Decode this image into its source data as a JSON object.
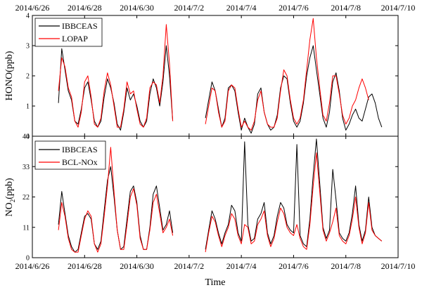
{
  "chart_data": [
    {
      "type": "line",
      "panel": "top",
      "ylabel": "HONO(ppb)",
      "ylim": [
        0,
        4
      ],
      "yticks": [
        "0",
        "1",
        "2",
        "3",
        "4"
      ],
      "xlim": [
        "2014-06-26",
        "2014-07-10"
      ],
      "xticks": [
        "2014/6/26",
        "2014/6/28",
        "2014/6/30",
        "2014/7/2",
        "2014/7/4",
        "2014/7/6",
        "2014/7/8",
        "2014/7/10"
      ],
      "x_axis_labels_on": "top",
      "legend": {
        "position": "top-left",
        "entries": [
          "IBBCEAS",
          "LOPAP"
        ]
      },
      "series": [
        {
          "name": "IBBCEAS",
          "color": "#000000",
          "x": [
            "2014-06-27 00:00",
            "2014-06-27 03:00",
            "2014-06-27 06:00",
            "2014-06-27 09:00",
            "2014-06-27 12:00",
            "2014-06-27 15:00",
            "2014-06-27 18:00",
            "2014-06-27 21:00",
            "2014-06-28 00:00",
            "2014-06-28 03:00",
            "2014-06-28 06:00",
            "2014-06-28 09:00",
            "2014-06-28 12:00",
            "2014-06-28 15:00",
            "2014-06-28 18:00",
            "2014-06-28 21:00",
            "2014-06-29 00:00",
            "2014-06-29 03:00",
            "2014-06-29 06:00",
            "2014-06-29 09:00",
            "2014-06-29 12:00",
            "2014-06-29 15:00",
            "2014-06-29 18:00",
            "2014-06-29 21:00",
            "2014-06-30 00:00",
            "2014-06-30 03:00",
            "2014-06-30 06:00",
            "2014-06-30 09:00",
            "2014-06-30 12:00",
            "2014-06-30 15:00",
            "2014-06-30 18:00",
            "2014-06-30 21:00",
            "2014-07-01 00:00",
            "2014-07-01 03:00",
            "2014-07-01 06:00",
            "2014-07-01 09:00",
            null,
            "2014-07-02 15:00",
            "2014-07-02 18:00",
            "2014-07-02 21:00",
            "2014-07-03 00:00",
            "2014-07-03 03:00",
            "2014-07-03 06:00",
            "2014-07-03 09:00",
            "2014-07-03 12:00",
            "2014-07-03 15:00",
            "2014-07-03 18:00",
            "2014-07-03 21:00",
            "2014-07-04 00:00",
            "2014-07-04 03:00",
            "2014-07-04 06:00",
            "2014-07-04 09:00",
            "2014-07-04 12:00",
            "2014-07-04 15:00",
            "2014-07-04 18:00",
            "2014-07-04 21:00",
            "2014-07-05 00:00",
            "2014-07-05 03:00",
            "2014-07-05 06:00",
            "2014-07-05 09:00",
            "2014-07-05 12:00",
            "2014-07-05 15:00",
            "2014-07-05 18:00",
            "2014-07-05 21:00",
            "2014-07-06 00:00",
            "2014-07-06 03:00",
            "2014-07-06 06:00",
            "2014-07-06 09:00",
            "2014-07-06 12:00",
            "2014-07-06 15:00",
            "2014-07-06 18:00",
            "2014-07-06 21:00",
            "2014-07-07 00:00",
            "2014-07-07 03:00",
            "2014-07-07 06:00",
            "2014-07-07 09:00",
            "2014-07-07 12:00",
            "2014-07-07 15:00",
            "2014-07-07 18:00",
            "2014-07-07 21:00",
            "2014-07-08 00:00",
            "2014-07-08 03:00",
            "2014-07-08 06:00",
            "2014-07-08 09:00",
            "2014-07-08 12:00",
            "2014-07-08 15:00",
            "2014-07-08 18:00",
            "2014-07-08 21:00",
            "2014-07-09 00:00",
            "2014-07-09 03:00",
            "2014-07-09 06:00",
            "2014-07-09 09:00"
          ],
          "y": [
            1.1,
            2.9,
            2.2,
            1.5,
            1.2,
            0.5,
            0.4,
            0.9,
            1.6,
            1.8,
            1.2,
            0.5,
            0.3,
            0.5,
            1.3,
            1.9,
            1.6,
            1.1,
            0.4,
            0.2,
            0.8,
            1.6,
            1.2,
            1.4,
            1.0,
            0.5,
            0.3,
            0.5,
            1.4,
            1.9,
            1.6,
            1.0,
            1.8,
            3.0,
            2.0,
            0.5,
            null,
            0.6,
            1.2,
            1.8,
            1.5,
            0.9,
            0.3,
            0.6,
            1.6,
            1.7,
            1.5,
            0.8,
            0.2,
            0.6,
            0.3,
            0.1,
            0.4,
            1.4,
            1.6,
            0.8,
            0.4,
            0.2,
            0.3,
            0.7,
            1.6,
            2.0,
            1.9,
            1.1,
            0.5,
            0.3,
            0.5,
            1.1,
            2.0,
            2.6,
            3.0,
            2.2,
            1.4,
            0.6,
            0.3,
            0.8,
            1.8,
            2.1,
            1.5,
            0.6,
            0.2,
            0.4,
            0.7,
            0.9,
            0.6,
            0.5,
            0.9,
            1.3,
            1.4,
            1.1,
            0.6,
            0.3
          ]
        },
        {
          "name": "LOPAP",
          "color": "#ff0000",
          "x": [
            "2014-06-27 00:00",
            "2014-06-27 03:00",
            "2014-06-27 06:00",
            "2014-06-27 09:00",
            "2014-06-27 12:00",
            "2014-06-27 15:00",
            "2014-06-27 18:00",
            "2014-06-27 21:00",
            "2014-06-28 00:00",
            "2014-06-28 03:00",
            "2014-06-28 06:00",
            "2014-06-28 09:00",
            "2014-06-28 12:00",
            "2014-06-28 15:00",
            "2014-06-28 18:00",
            "2014-06-28 21:00",
            "2014-06-29 00:00",
            "2014-06-29 03:00",
            "2014-06-29 06:00",
            "2014-06-29 09:00",
            "2014-06-29 12:00",
            "2014-06-29 15:00",
            "2014-06-29 18:00",
            "2014-06-29 21:00",
            "2014-06-30 00:00",
            "2014-06-30 03:00",
            "2014-06-30 06:00",
            "2014-06-30 09:00",
            "2014-06-30 12:00",
            "2014-06-30 15:00",
            "2014-06-30 18:00",
            "2014-06-30 21:00",
            "2014-07-01 00:00",
            "2014-07-01 03:00",
            "2014-07-01 06:00",
            "2014-07-01 09:00",
            null,
            "2014-07-02 15:00",
            "2014-07-02 18:00",
            "2014-07-02 21:00",
            "2014-07-03 00:00",
            "2014-07-03 03:00",
            "2014-07-03 06:00",
            "2014-07-03 09:00",
            "2014-07-03 12:00",
            "2014-07-03 15:00",
            "2014-07-03 18:00",
            "2014-07-03 21:00",
            "2014-07-04 00:00",
            "2014-07-04 03:00",
            "2014-07-04 06:00",
            "2014-07-04 09:00",
            "2014-07-04 12:00",
            "2014-07-04 15:00",
            "2014-07-04 18:00",
            "2014-07-04 21:00",
            "2014-07-05 00:00",
            "2014-07-05 03:00",
            "2014-07-05 06:00",
            "2014-07-05 09:00",
            "2014-07-05 12:00",
            "2014-07-05 15:00",
            "2014-07-05 18:00",
            "2014-07-05 21:00",
            "2014-07-06 00:00",
            "2014-07-06 03:00",
            "2014-07-06 06:00",
            "2014-07-06 09:00",
            "2014-07-06 12:00",
            "2014-07-06 15:00",
            "2014-07-06 18:00",
            "2014-07-06 21:00",
            "2014-07-07 00:00",
            "2014-07-07 03:00",
            "2014-07-07 06:00",
            "2014-07-07 09:00",
            "2014-07-07 12:00",
            "2014-07-07 15:00",
            "2014-07-07 18:00",
            "2014-07-07 21:00",
            "2014-07-08 00:00",
            "2014-07-08 03:00",
            "2014-07-08 06:00",
            "2014-07-08 09:00",
            "2014-07-08 12:00",
            "2014-07-08 15:00",
            "2014-07-08 18:00",
            "2014-07-08 21:00"
          ],
          "y": [
            1.5,
            2.6,
            2.3,
            1.6,
            1.3,
            0.5,
            0.3,
            0.8,
            1.8,
            2.0,
            1.3,
            0.4,
            0.3,
            0.6,
            1.5,
            2.1,
            1.7,
            1.0,
            0.3,
            0.3,
            0.9,
            1.8,
            1.4,
            1.5,
            0.9,
            0.4,
            0.3,
            0.6,
            1.6,
            1.8,
            1.7,
            1.1,
            2.0,
            3.7,
            2.4,
            0.5,
            null,
            0.4,
            1.0,
            1.6,
            1.5,
            0.8,
            0.3,
            0.5,
            1.5,
            1.7,
            1.6,
            0.9,
            0.3,
            0.5,
            0.3,
            0.2,
            0.5,
            1.2,
            1.5,
            0.8,
            0.4,
            0.3,
            0.3,
            0.6,
            1.5,
            2.2,
            2.0,
            1.2,
            0.6,
            0.4,
            0.6,
            1.2,
            2.2,
            3.2,
            3.9,
            2.6,
            1.6,
            0.7,
            0.5,
            1.1,
            2.0,
            2.0,
            1.4,
            0.7,
            0.4,
            0.6,
            1.0,
            1.2,
            1.6,
            1.9,
            1.6,
            1.2
          ]
        }
      ]
    },
    {
      "type": "line",
      "panel": "bottom",
      "ylabel": "NO2(ppb)",
      "xlabel": "Time",
      "ylim": [
        0,
        44
      ],
      "yticks": [
        "0",
        "11",
        "22",
        "33",
        "44"
      ],
      "xlim": [
        "2014-06-26",
        "2014-07-10"
      ],
      "xticks": [
        "2014/6/26",
        "2014/6/28",
        "2014/6/30",
        "2014/7/2",
        "2014/7/4",
        "2014/7/6",
        "2014/7/8",
        "2014/7/10"
      ],
      "legend": {
        "position": "top-left",
        "entries": [
          "IBBCEAS",
          "BCL-NOx"
        ]
      },
      "series": [
        {
          "name": "IBBCEAS",
          "color": "#000000",
          "x": [
            "2014-06-27 00:00",
            "2014-06-27 03:00",
            "2014-06-27 06:00",
            "2014-06-27 09:00",
            "2014-06-27 12:00",
            "2014-06-27 15:00",
            "2014-06-27 18:00",
            "2014-06-27 21:00",
            "2014-06-28 00:00",
            "2014-06-28 03:00",
            "2014-06-28 06:00",
            "2014-06-28 09:00",
            "2014-06-28 12:00",
            "2014-06-28 15:00",
            "2014-06-28 18:00",
            "2014-06-28 21:00",
            "2014-06-29 00:00",
            "2014-06-29 03:00",
            "2014-06-29 06:00",
            "2014-06-29 09:00",
            "2014-06-29 12:00",
            "2014-06-29 15:00",
            "2014-06-29 18:00",
            "2014-06-29 21:00",
            "2014-06-30 00:00",
            "2014-06-30 03:00",
            "2014-06-30 06:00",
            "2014-06-30 09:00",
            "2014-06-30 12:00",
            "2014-06-30 15:00",
            "2014-06-30 18:00",
            "2014-06-30 21:00",
            "2014-07-01 00:00",
            "2014-07-01 03:00",
            "2014-07-01 06:00",
            "2014-07-01 09:00",
            null,
            "2014-07-02 15:00",
            "2014-07-02 18:00",
            "2014-07-02 21:00",
            "2014-07-03 00:00",
            "2014-07-03 03:00",
            "2014-07-03 06:00",
            "2014-07-03 09:00",
            "2014-07-03 12:00",
            "2014-07-03 15:00",
            "2014-07-03 18:00",
            "2014-07-03 21:00",
            "2014-07-04 00:00",
            "2014-07-04 03:00",
            "2014-07-04 06:00",
            "2014-07-04 09:00",
            "2014-07-04 12:00",
            "2014-07-04 15:00",
            "2014-07-04 18:00",
            "2014-07-04 21:00",
            "2014-07-05 00:00",
            "2014-07-05 03:00",
            "2014-07-05 06:00",
            "2014-07-05 09:00",
            "2014-07-05 12:00",
            "2014-07-05 15:00",
            "2014-07-05 18:00",
            "2014-07-05 21:00",
            "2014-07-06 00:00",
            "2014-07-06 03:00",
            "2014-07-06 06:00",
            "2014-07-06 09:00",
            "2014-07-06 12:00",
            "2014-07-06 15:00",
            "2014-07-06 18:00",
            "2014-07-06 21:00",
            "2014-07-07 00:00",
            "2014-07-07 03:00",
            "2014-07-07 06:00",
            "2014-07-07 09:00",
            "2014-07-07 12:00",
            "2014-07-07 15:00",
            "2014-07-07 18:00",
            "2014-07-07 21:00",
            "2014-07-08 00:00",
            "2014-07-08 03:00",
            "2014-07-08 06:00",
            "2014-07-08 09:00",
            "2014-07-08 12:00",
            "2014-07-08 15:00",
            "2014-07-08 18:00",
            "2014-07-08 21:00",
            "2014-07-09 00:00",
            "2014-07-09 03:00",
            "2014-07-09 06:00",
            "2014-07-09 09:00"
          ],
          "y": [
            12,
            24,
            16,
            8,
            4,
            2,
            3,
            9,
            15,
            16,
            14,
            5,
            3,
            6,
            17,
            28,
            33,
            22,
            10,
            3,
            4,
            14,
            24,
            26,
            20,
            8,
            3,
            3,
            11,
            23,
            26,
            18,
            10,
            12,
            17,
            9,
            null,
            3,
            10,
            17,
            14,
            9,
            5,
            9,
            12,
            19,
            17,
            9,
            6,
            42,
            12,
            6,
            7,
            14,
            16,
            20,
            9,
            5,
            8,
            15,
            20,
            18,
            12,
            10,
            9,
            41,
            8,
            5,
            4,
            14,
            30,
            43,
            27,
            11,
            7,
            10,
            32,
            21,
            9,
            7,
            6,
            9,
            16,
            26,
            12,
            6,
            10,
            22,
            11,
            8,
            7,
            6
          ]
        },
        {
          "name": "BCL-NOx",
          "color": "#ff0000",
          "x": [
            "2014-06-27 00:00",
            "2014-06-27 03:00",
            "2014-06-27 06:00",
            "2014-06-27 09:00",
            "2014-06-27 12:00",
            "2014-06-27 15:00",
            "2014-06-27 18:00",
            "2014-06-27 21:00",
            "2014-06-28 00:00",
            "2014-06-28 03:00",
            "2014-06-28 06:00",
            "2014-06-28 09:00",
            "2014-06-28 12:00",
            "2014-06-28 15:00",
            "2014-06-28 18:00",
            "2014-06-28 21:00",
            "2014-06-29 00:00",
            "2014-06-29 03:00",
            "2014-06-29 06:00",
            "2014-06-29 09:00",
            "2014-06-29 12:00",
            "2014-06-29 15:00",
            "2014-06-29 18:00",
            "2014-06-29 21:00",
            "2014-06-30 00:00",
            "2014-06-30 03:00",
            "2014-06-30 06:00",
            "2014-06-30 09:00",
            "2014-06-30 12:00",
            "2014-06-30 15:00",
            "2014-06-30 18:00",
            "2014-06-30 21:00",
            "2014-07-01 00:00",
            "2014-07-01 03:00",
            "2014-07-01 06:00",
            "2014-07-01 09:00",
            null,
            "2014-07-02 15:00",
            "2014-07-02 18:00",
            "2014-07-02 21:00",
            "2014-07-03 00:00",
            "2014-07-03 03:00",
            "2014-07-03 06:00",
            "2014-07-03 09:00",
            "2014-07-03 12:00",
            "2014-07-03 15:00",
            "2014-07-03 18:00",
            "2014-07-03 21:00",
            "2014-07-04 00:00",
            "2014-07-04 03:00",
            "2014-07-04 06:00",
            "2014-07-04 09:00",
            "2014-07-04 12:00",
            "2014-07-04 15:00",
            "2014-07-04 18:00",
            "2014-07-04 21:00",
            "2014-07-05 00:00",
            "2014-07-05 03:00",
            "2014-07-05 06:00",
            "2014-07-05 09:00",
            "2014-07-05 12:00",
            "2014-07-05 15:00",
            "2014-07-05 18:00",
            "2014-07-05 21:00",
            "2014-07-06 00:00",
            "2014-07-06 03:00",
            "2014-07-06 06:00",
            "2014-07-06 09:00",
            "2014-07-06 12:00",
            "2014-07-06 15:00",
            "2014-07-06 18:00",
            "2014-07-06 21:00",
            "2014-07-07 00:00",
            "2014-07-07 03:00",
            "2014-07-07 06:00",
            "2014-07-07 09:00",
            "2014-07-07 12:00",
            "2014-07-07 15:00",
            "2014-07-07 18:00",
            "2014-07-07 21:00",
            "2014-07-08 00:00",
            "2014-07-08 03:00",
            "2014-07-08 06:00",
            "2014-07-08 09:00",
            "2014-07-08 12:00",
            "2014-07-08 15:00",
            "2014-07-08 18:00",
            "2014-07-08 21:00",
            "2014-07-09 00:00",
            "2014-07-09 03:00",
            "2014-07-09 06:00",
            "2014-07-09 09:00"
          ],
          "y": [
            10,
            20,
            15,
            7,
            3,
            2,
            2,
            8,
            14,
            17,
            15,
            5,
            2,
            5,
            15,
            26,
            40,
            24,
            10,
            3,
            3,
            12,
            22,
            25,
            19,
            7,
            3,
            3,
            10,
            20,
            23,
            16,
            9,
            11,
            14,
            8,
            null,
            2,
            9,
            15,
            13,
            8,
            4,
            8,
            11,
            16,
            14,
            8,
            5,
            12,
            11,
            5,
            6,
            12,
            14,
            17,
            8,
            4,
            7,
            13,
            18,
            16,
            11,
            9,
            8,
            12,
            7,
            4,
            3,
            12,
            26,
            38,
            24,
            10,
            6,
            9,
            13,
            18,
            8,
            6,
            5,
            8,
            14,
            22,
            11,
            5,
            9,
            20,
            10,
            8,
            7,
            6
          ]
        }
      ]
    }
  ],
  "figure": {
    "xlabel": "Time",
    "top_ylabel": "HONO(ppb)",
    "bottom_ylabel_main": "NO",
    "bottom_ylabel_sub": "2",
    "bottom_ylabel_rest": "(ppb)",
    "legend_top": [
      "IBBCEAS",
      "LOPAP"
    ],
    "legend_bottom": [
      "IBBCEAS",
      "BCL-NOx"
    ]
  }
}
